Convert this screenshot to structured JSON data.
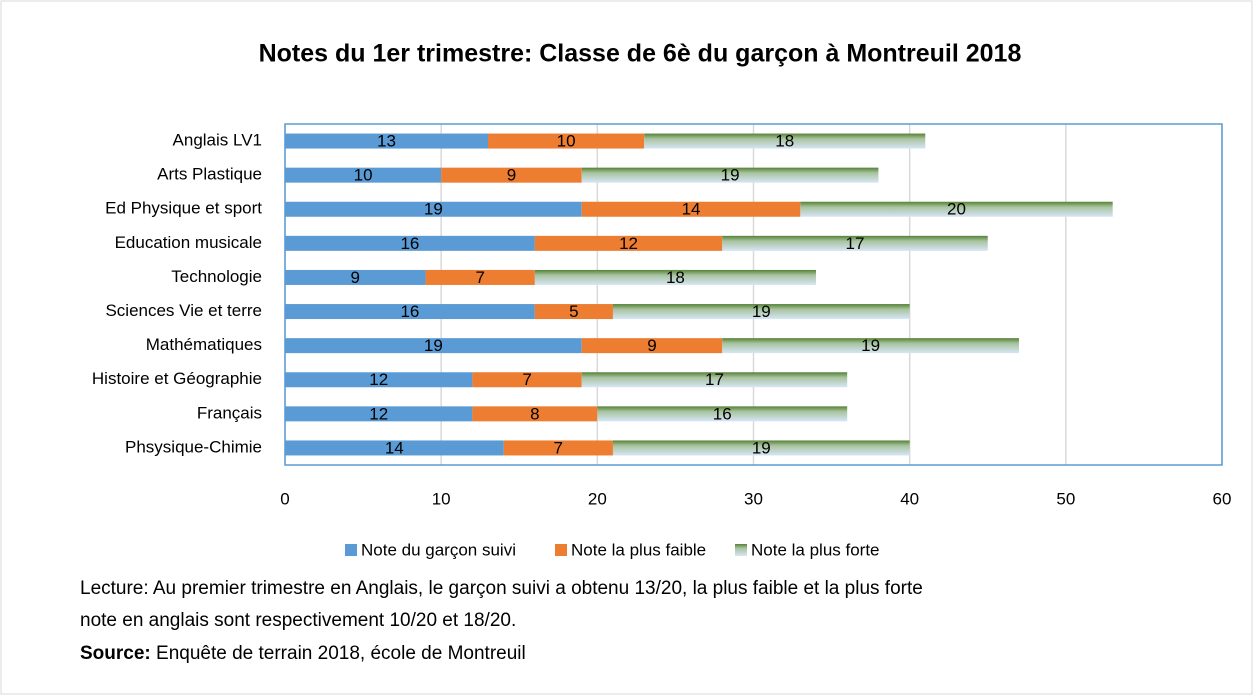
{
  "chart_data": {
    "type": "stacked-bar-horizontal",
    "title": "Notes du 1er trimestre: Classe de 6è du garçon à Montreuil 2018",
    "categories": [
      "Anglais LV1",
      "Arts Plastique",
      "Ed Physique et sport",
      "Education musicale",
      "Technologie",
      "Sciences Vie et terre",
      "Mathématiques",
      "Histoire et Géographie",
      "Français",
      "Phsysique-Chimie"
    ],
    "series": [
      {
        "name": "Note du garçon suivi",
        "color": "#5b9bd5",
        "values": [
          13,
          10,
          19,
          16,
          9,
          16,
          19,
          12,
          12,
          14
        ]
      },
      {
        "name": "Note la plus faible",
        "color": "#ed7d31",
        "values": [
          10,
          9,
          14,
          12,
          7,
          5,
          9,
          7,
          8,
          7
        ]
      },
      {
        "name": "Note la plus forte",
        "color": "#548235",
        "values": [
          18,
          19,
          20,
          17,
          18,
          19,
          19,
          17,
          16,
          19
        ]
      }
    ],
    "xlim": [
      0,
      60
    ],
    "xticks": [
      0,
      10,
      20,
      30,
      40,
      50,
      60
    ],
    "grid": true,
    "legend": "bottom"
  },
  "notes": [
    "Lecture: Au premier trimestre en Anglais, le garçon suivi a obtenu 13/20, la plus faible et la plus forte",
    "note en anglais sont respectivement 10/20 et 18/20."
  ],
  "source": {
    "label": "Source:",
    "text": "Enquête de terrain 2018, école de Montreuil"
  }
}
